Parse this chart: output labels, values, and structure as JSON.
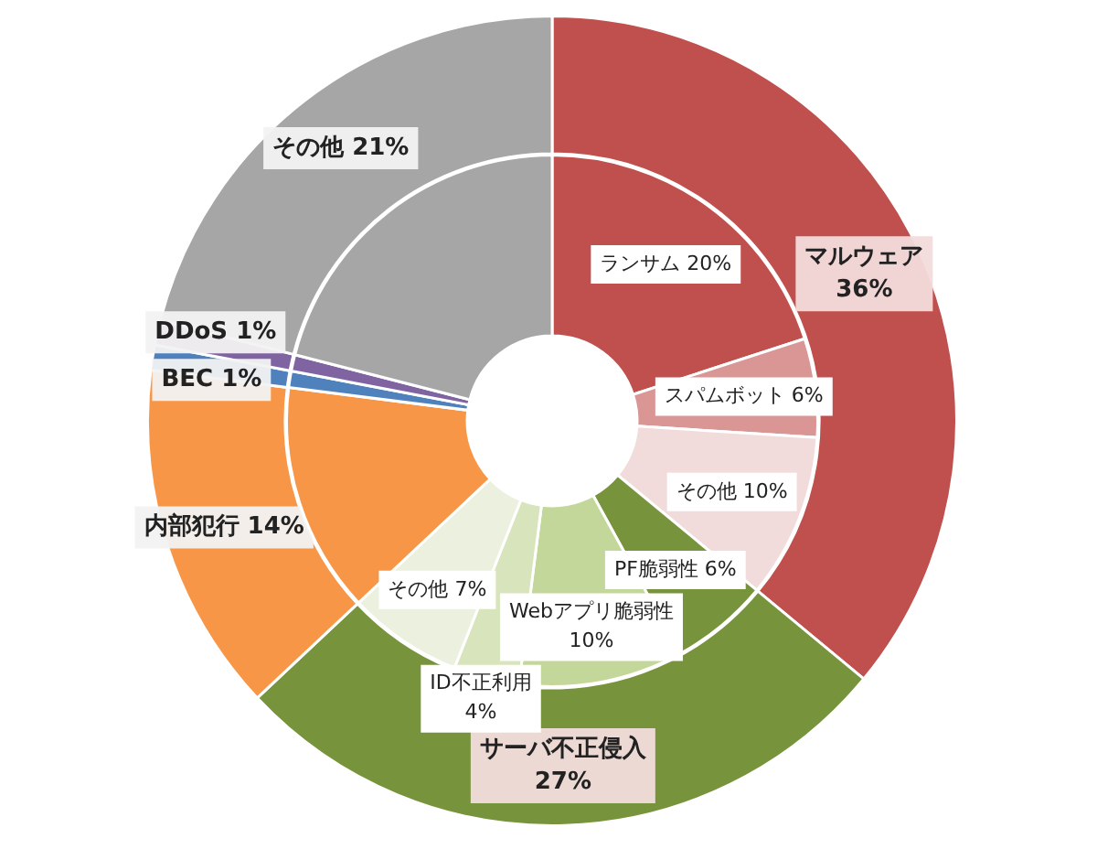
{
  "chart_data": [
    {
      "type": "donut",
      "legend": false,
      "data_labels": true,
      "categories": [
        "マルウェア",
        "サーバ不正侵入",
        "内部犯行",
        "BEC",
        "DDoS",
        "その他"
      ],
      "values": [
        36,
        27,
        14,
        1,
        1,
        21
      ],
      "value_labels": [
        "36%",
        "27%",
        "14%",
        "1%",
        "1%",
        "21%"
      ],
      "colors": [
        "#c0504d",
        "#77933c",
        "#f79646",
        "#4f81bd",
        "#8064a2",
        "#a6a6a6"
      ]
    },
    {
      "type": "donut",
      "legend": false,
      "data_labels": true,
      "categories": [
        "ランサム",
        "スパムボット",
        "その他",
        "PF脆弱性",
        "Webアプリ脆弱性",
        "ID不正利用",
        "その他",
        null,
        null,
        null,
        null
      ],
      "values": [
        20,
        6,
        10,
        6,
        10,
        4,
        7,
        14,
        1,
        1,
        21
      ],
      "value_labels": [
        "20%",
        "6%",
        "10%",
        "6%",
        "10%",
        "4%",
        "7%",
        null,
        null,
        null,
        null
      ],
      "colors": [
        "#c0504d",
        "#da9694",
        "#f2dcdb",
        "#77933c",
        "#c4d79b",
        "#d8e4bc",
        "#ebf1de",
        "#f79646",
        "#4f81bd",
        "#8064a2",
        "#a6a6a6"
      ]
    }
  ]
}
